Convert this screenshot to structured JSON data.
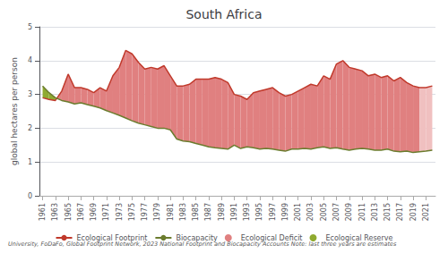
{
  "chart_data": {
    "type": "line",
    "title": "South Africa",
    "ylabel": "global hectares per person",
    "footnote": "University, FoDaFo, Global Footprint Network, 2023 National Footprint and Biocapacity Accounts Note: last three years are estimates",
    "x": [
      1961,
      1962,
      1963,
      1964,
      1965,
      1966,
      1967,
      1968,
      1969,
      1970,
      1971,
      1972,
      1973,
      1974,
      1975,
      1976,
      1977,
      1978,
      1979,
      1980,
      1981,
      1982,
      1983,
      1984,
      1985,
      1986,
      1987,
      1988,
      1989,
      1990,
      1991,
      1992,
      1993,
      1994,
      1995,
      1996,
      1997,
      1998,
      1999,
      2000,
      2001,
      2002,
      2003,
      2004,
      2005,
      2006,
      2007,
      2008,
      2009,
      2010,
      2011,
      2012,
      2013,
      2014,
      2015,
      2016,
      2017,
      2018,
      2019,
      2020,
      2021,
      2022
    ],
    "series": [
      {
        "name": "Ecological Footprint",
        "type": "line",
        "color": "#c0392b",
        "values": [
          2.9,
          2.85,
          2.82,
          3.1,
          3.6,
          3.2,
          3.2,
          3.15,
          3.05,
          3.2,
          3.1,
          3.55,
          3.8,
          4.3,
          4.2,
          3.95,
          3.75,
          3.8,
          3.75,
          3.85,
          3.55,
          3.25,
          3.25,
          3.3,
          3.45,
          3.45,
          3.45,
          3.5,
          3.45,
          3.35,
          3.0,
          2.95,
          2.85,
          3.05,
          3.1,
          3.15,
          3.2,
          3.05,
          2.95,
          3.0,
          3.1,
          3.2,
          3.3,
          3.25,
          3.55,
          3.45,
          3.9,
          4.0,
          3.8,
          3.75,
          3.7,
          3.55,
          3.6,
          3.5,
          3.55,
          3.4,
          3.5,
          3.35,
          3.25,
          3.2,
          3.2,
          3.25
        ]
      },
      {
        "name": "Biocapacity",
        "type": "line",
        "color": "#6b7c2e",
        "values": [
          3.25,
          3.05,
          2.9,
          2.82,
          2.78,
          2.72,
          2.75,
          2.7,
          2.65,
          2.6,
          2.52,
          2.45,
          2.38,
          2.3,
          2.22,
          2.15,
          2.1,
          2.05,
          2.0,
          2.0,
          1.95,
          1.68,
          1.62,
          1.6,
          1.55,
          1.5,
          1.45,
          1.42,
          1.4,
          1.38,
          1.5,
          1.4,
          1.45,
          1.42,
          1.38,
          1.4,
          1.38,
          1.35,
          1.32,
          1.38,
          1.38,
          1.4,
          1.38,
          1.42,
          1.45,
          1.4,
          1.42,
          1.38,
          1.35,
          1.38,
          1.4,
          1.38,
          1.35,
          1.35,
          1.38,
          1.32,
          1.3,
          1.32,
          1.28,
          1.3,
          1.32,
          1.35
        ]
      },
      {
        "name": "Ecological Deficit",
        "type": "area",
        "color": "#e08080",
        "colors": [
          "#e08080",
          "#e08080",
          "#e08080",
          "#e08080",
          "#e08080",
          "#e08080",
          "#e08080",
          "#e08080",
          "#e08080",
          "#e08080",
          "#e08080",
          "#e08080",
          "#e08080",
          "#e08080",
          "#e08080",
          "#e08080",
          "#e08080",
          "#e08080",
          "#e08080",
          "#e08080",
          "#e08080",
          "#e08080",
          "#e08080",
          "#e08080",
          "#e08080",
          "#e08080",
          "#e08080",
          "#e08080",
          "#e08080",
          "#e08080",
          "#e08080",
          "#e08080",
          "#e08080",
          "#e08080",
          "#e08080",
          "#e08080",
          "#e08080",
          "#e08080",
          "#e08080",
          "#e08080",
          "#e08080",
          "#e08080",
          "#e08080",
          "#e08080",
          "#e08080",
          "#e08080",
          "#e08080",
          "#e08080",
          "#e08080",
          "#e08080",
          "#e08080",
          "#e08080",
          "#e08080",
          "#e08080",
          "#e08080",
          "#e08080",
          "#e08080",
          "#e08080",
          "#e08080",
          "#f0c0c0",
          "#f0c0c0",
          "#f0c0c0"
        ]
      },
      {
        "name": "Ecological Reserve",
        "type": "area",
        "color": "#8faa30"
      }
    ],
    "xlim": [
      1960.5,
      2022.5
    ],
    "xticks": [
      1961,
      1963,
      1965,
      1967,
      1969,
      1971,
      1973,
      1975,
      1977,
      1979,
      1981,
      1983,
      1985,
      1987,
      1989,
      1991,
      1993,
      1995,
      1997,
      1999,
      2001,
      2003,
      2005,
      2007,
      2009,
      2011,
      2013,
      2015,
      2017,
      2019,
      2021
    ],
    "ylim": [
      0,
      5
    ],
    "yticks": [
      0,
      1,
      2,
      3,
      4,
      5
    ],
    "grid": true,
    "legend": "bottom"
  }
}
